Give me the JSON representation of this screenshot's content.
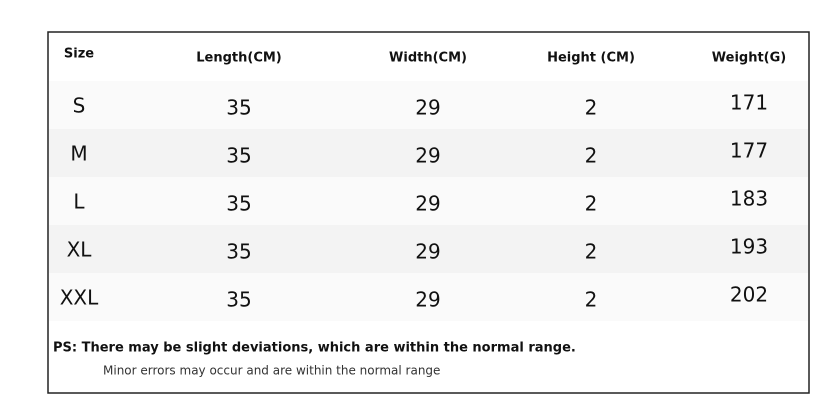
{
  "table": {
    "header": [
      "Size",
      "Length(CM)",
      "Width(CM)",
      "Height (CM)",
      "Weight(G)"
    ],
    "rows": [
      [
        "S",
        35,
        29,
        2,
        171
      ],
      [
        "M",
        35,
        29,
        2,
        177
      ],
      [
        "L",
        35,
        29,
        2,
        183
      ],
      [
        "XL",
        35,
        29,
        2,
        193
      ],
      [
        "XXL",
        35,
        29,
        2,
        202
      ]
    ]
  },
  "notes": {
    "main": "PS: There may be slight deviations, which are within the normal range.",
    "sub": "Minor errors may occur and are within the normal range"
  }
}
